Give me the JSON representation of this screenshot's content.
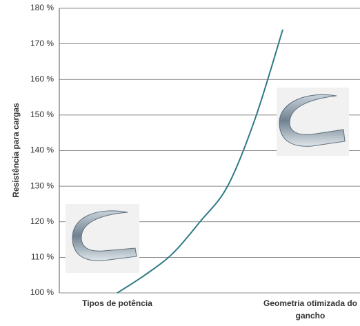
{
  "chart_data": {
    "type": "line",
    "y_label": "Resistência para cargas",
    "categories": [
      "Tipos de potência",
      null,
      null,
      null,
      null,
      null,
      null,
      "Geometria otimizada do gancho"
    ],
    "series": [
      {
        "name": null,
        "color": "#2e7a86",
        "values": [
          100,
          105,
          111,
          120,
          130,
          149,
          174,
          null
        ]
      }
    ],
    "ylim": [
      100,
      180
    ],
    "yticks": [
      {
        "value": 100,
        "label": "100 %"
      },
      {
        "value": 110,
        "label": "110 %"
      },
      {
        "value": 120,
        "label": "120 %"
      },
      {
        "value": 130,
        "label": "130 %"
      },
      {
        "value": 140,
        "label": "140 %"
      },
      {
        "value": 150,
        "label": "150 %"
      },
      {
        "value": 160,
        "label": "160 %"
      },
      {
        "value": 170,
        "label": "170 %"
      },
      {
        "value": 180,
        "label": "180 %"
      }
    ],
    "grid": true
  }
}
